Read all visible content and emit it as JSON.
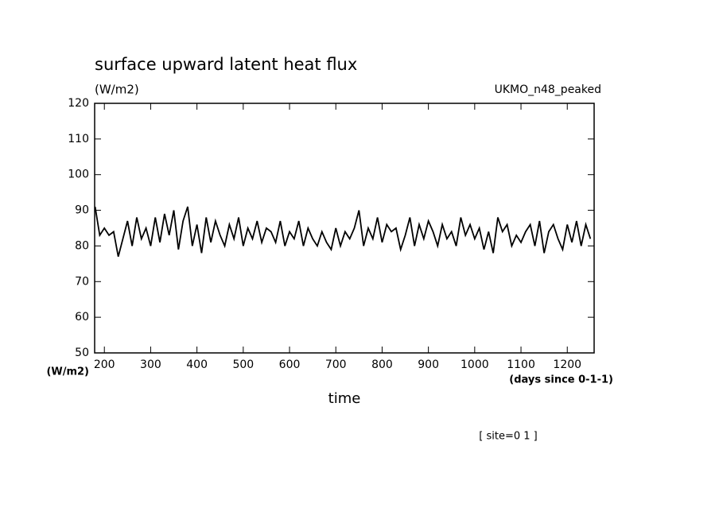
{
  "chart_data": {
    "type": "line",
    "title": "surface upward latent heat flux",
    "subtitle": "(W/m2)",
    "annotation": "UKMO_n48_peaked",
    "y_axis_label": "(W/m2)",
    "x_axis_units": "(days since 0-1-1)",
    "x_axis_label": "time",
    "footnote": "[ site=0 1 ]",
    "x": [
      180,
      190,
      200,
      210,
      220,
      230,
      240,
      250,
      260,
      270,
      280,
      290,
      300,
      310,
      320,
      330,
      340,
      350,
      360,
      370,
      380,
      390,
      400,
      410,
      420,
      430,
      440,
      450,
      460,
      470,
      480,
      490,
      500,
      510,
      520,
      530,
      540,
      550,
      560,
      570,
      580,
      590,
      600,
      610,
      620,
      630,
      640,
      650,
      660,
      670,
      680,
      690,
      700,
      710,
      720,
      730,
      740,
      750,
      760,
      770,
      780,
      790,
      800,
      810,
      820,
      830,
      840,
      850,
      860,
      870,
      880,
      890,
      900,
      910,
      920,
      930,
      940,
      950,
      960,
      970,
      980,
      990,
      1000,
      1010,
      1020,
      1030,
      1040,
      1050,
      1060,
      1070,
      1080,
      1090,
      1100,
      1110,
      1120,
      1130,
      1140,
      1150,
      1160,
      1170,
      1180,
      1190,
      1200,
      1210,
      1220,
      1230,
      1240,
      1250
    ],
    "series": [
      {
        "color": "#000000",
        "values": [
          91,
          83,
          85,
          83,
          84,
          77,
          82,
          87,
          80,
          88,
          82,
          85,
          80,
          88,
          81,
          89,
          83,
          90,
          79,
          87,
          91,
          80,
          86,
          78,
          88,
          81,
          87,
          83,
          80,
          86,
          82,
          88,
          80,
          85,
          82,
          87,
          81,
          85,
          84,
          81,
          87,
          80,
          84,
          82,
          87,
          80,
          85,
          82,
          80,
          84,
          81,
          79,
          85,
          80,
          84,
          82,
          85,
          90,
          80,
          85,
          82,
          88,
          81,
          86,
          84,
          85,
          79,
          83,
          88,
          80,
          86,
          82,
          87,
          84,
          80,
          86,
          82,
          84,
          80,
          88,
          83,
          86,
          82,
          85,
          79,
          84,
          78,
          88,
          84,
          86,
          80,
          83,
          81,
          84,
          86,
          80,
          87,
          78,
          84,
          86,
          82,
          79,
          86,
          81,
          87,
          80,
          86,
          82
        ]
      }
    ],
    "xlim": [
      179,
      1258
    ],
    "ylim": [
      50,
      120
    ],
    "xticks": [
      200,
      300,
      400,
      500,
      600,
      700,
      800,
      900,
      1000,
      1100,
      1200
    ],
    "yticks": [
      50,
      60,
      70,
      80,
      90,
      100,
      110,
      120
    ]
  }
}
